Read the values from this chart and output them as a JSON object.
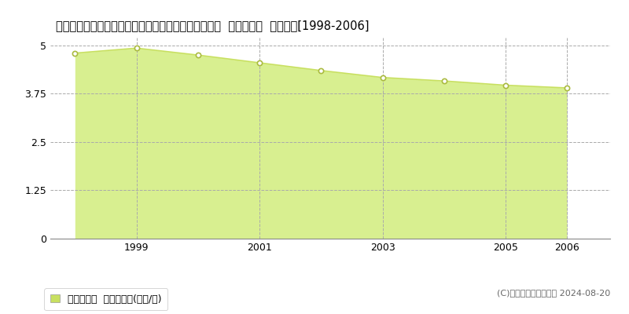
{
  "title": "群馬県利根郡川場村大字立岩字清水１０３番１外の内  基準地価格  地価推移[1998-2006]",
  "years": [
    1998,
    1999,
    2000,
    2001,
    2002,
    2003,
    2004,
    2005,
    2006
  ],
  "values": [
    4.8,
    4.93,
    4.75,
    4.55,
    4.35,
    4.17,
    4.08,
    3.97,
    3.9
  ],
  "line_color": "#c8e060",
  "fill_color": "#d8ef90",
  "marker_facecolor": "#ffffff",
  "marker_edgecolor": "#aabb40",
  "background_color": "#ffffff",
  "grid_color": "#aaaaaa",
  "yticks": [
    0,
    1.25,
    2.5,
    3.75,
    5
  ],
  "xtick_labels": [
    "1999",
    "2001",
    "2003",
    "2005",
    "2006"
  ],
  "xtick_positions": [
    1999,
    2001,
    2003,
    2005,
    2006
  ],
  "ylim": [
    0,
    5.2
  ],
  "xlim": [
    1997.6,
    2006.7
  ],
  "legend_label": "基準地価格  平均坪単価(万円/坪)",
  "copyright": "(C)土地価格ドットコム 2024-08-20",
  "legend_color": "#c8e060",
  "title_fontsize": 10.5,
  "axis_fontsize": 9,
  "legend_fontsize": 9
}
